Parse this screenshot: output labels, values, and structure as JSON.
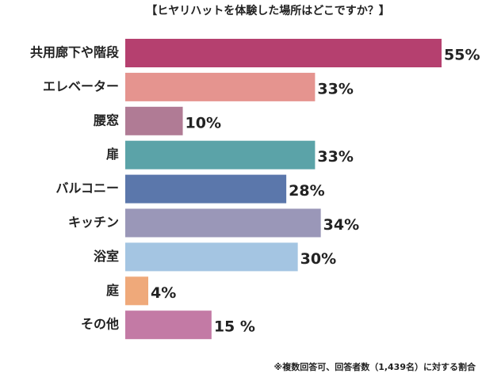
{
  "chart_data": {
    "type": "bar",
    "orientation": "horizontal",
    "title": "【ヒヤリハットを体験した場所はどこですか？】",
    "categories": [
      "共用廊下や階段",
      "エレベーター",
      "腰窓",
      "扉",
      "バルコニー",
      "キッチン",
      "浴室",
      "庭",
      "その他"
    ],
    "values": [
      55,
      33,
      10,
      33,
      28,
      34,
      30,
      4,
      15
    ],
    "value_labels": [
      "55%",
      "33%",
      "10%",
      "33%",
      "28%",
      "34%",
      "30%",
      "4%",
      "15 %"
    ],
    "colors": [
      "#b5406f",
      "#e5948f",
      "#b07b95",
      "#5ba3a8",
      "#5b77ab",
      "#9a97b8",
      "#a4c5e2",
      "#efa97a",
      "#c37aa5"
    ],
    "note": "※複数回答可、回答者数（1,439名）に対する割合"
  }
}
